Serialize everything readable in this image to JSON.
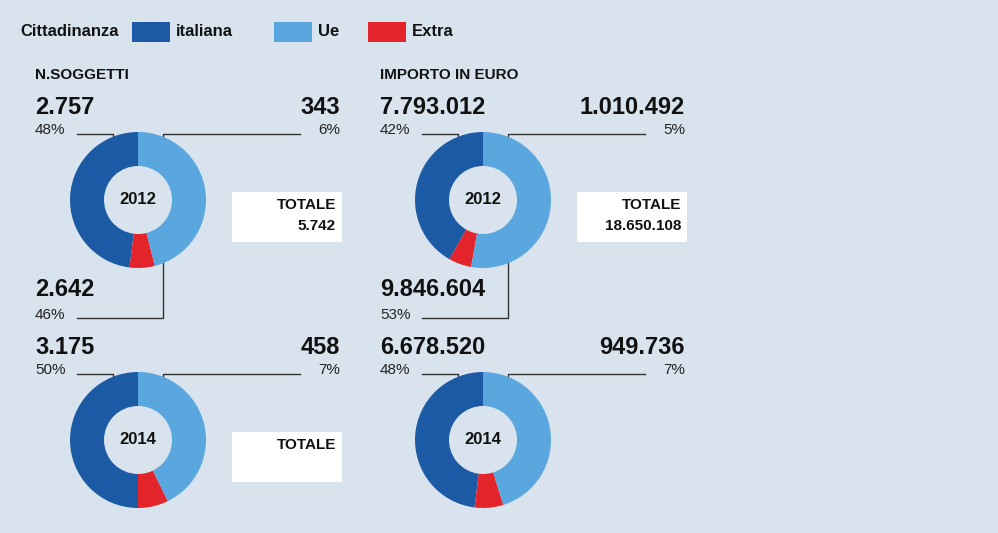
{
  "legend_title": "Cittadinanza",
  "chart_data": [
    {
      "type": "pie",
      "header": "N.SOGGETTI",
      "center_label": "2012",
      "categories": [
        "italiana",
        "Ue",
        "Extra"
      ],
      "colors": [
        "#1d5aa6",
        "#5aa6df",
        "#e3242b"
      ],
      "values": [
        2757,
        2642,
        343
      ],
      "value_labels": [
        "2.757",
        "2.642",
        "343"
      ],
      "percent_labels": [
        "48%",
        "46%",
        "6%"
      ],
      "total_title": "TOTALE",
      "total": 5742,
      "total_label": "5.742"
    },
    {
      "type": "pie",
      "header": "IMPORTO IN EURO",
      "center_label": "2012",
      "categories": [
        "italiana",
        "Ue",
        "Extra"
      ],
      "colors": [
        "#1d5aa6",
        "#5aa6df",
        "#e3242b"
      ],
      "values": [
        7793012,
        9846604,
        1010492
      ],
      "value_labels": [
        "7.793.012",
        "9.846.604",
        "1.010.492"
      ],
      "percent_labels": [
        "42%",
        "53%",
        "5%"
      ],
      "total_title": "TOTALE",
      "total": 18650108,
      "total_label": "18.650.108"
    },
    {
      "type": "pie",
      "center_label": "2014",
      "categories": [
        "italiana",
        "Ue",
        "Extra"
      ],
      "colors": [
        "#1d5aa6",
        "#5aa6df",
        "#e3242b"
      ],
      "values": [
        3175,
        2717,
        458
      ],
      "value_labels": [
        "3.175",
        null,
        "458"
      ],
      "percent_labels": [
        "50%",
        null,
        "7%"
      ],
      "total_title": "TOTALE"
    },
    {
      "type": "pie",
      "center_label": "2014",
      "categories": [
        "italiana",
        "Ue",
        "Extra"
      ],
      "colors": [
        "#1d5aa6",
        "#5aa6df",
        "#e3242b"
      ],
      "values": [
        6678520,
        6285327,
        949736
      ],
      "value_labels": [
        "6.678.520",
        null,
        "949.736"
      ],
      "percent_labels": [
        "48%",
        null,
        "7%"
      ]
    }
  ]
}
